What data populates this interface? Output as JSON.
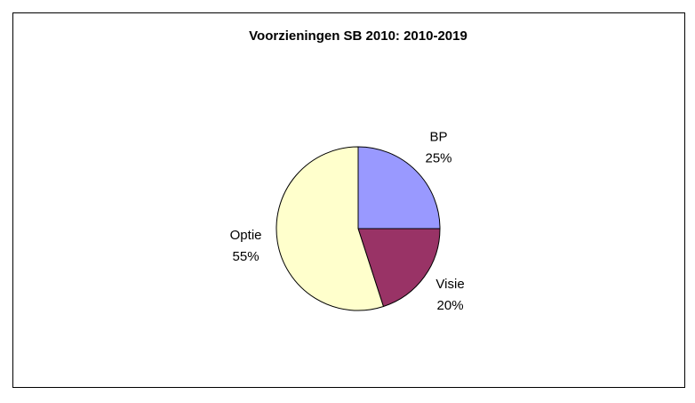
{
  "chart_data": {
    "type": "pie",
    "title": "Voorzieningen SB 2010: 2010-2019",
    "categories": [
      "BP",
      "Visie",
      "Optie"
    ],
    "values": [
      25,
      20,
      55
    ],
    "value_labels": [
      "25%",
      "20%",
      "55%"
    ],
    "colors": [
      "#9999ff",
      "#993366",
      "#ffffcc"
    ]
  }
}
